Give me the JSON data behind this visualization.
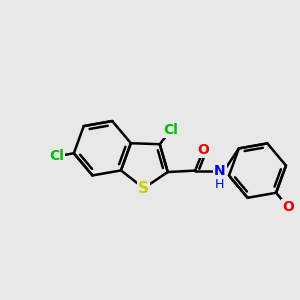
{
  "background_color": "#e8e8e8",
  "bond_color": "#000000",
  "bond_width": 1.8,
  "cl_color": "#00bb00",
  "s_color": "#cccc00",
  "o_color": "#ee0000",
  "n_color": "#0000ee",
  "font_size_atom": 10,
  "fig_width": 3.0,
  "fig_height": 3.0,
  "dpi": 100,
  "xlim": [
    -3.5,
    5.0
  ],
  "ylim": [
    -3.0,
    3.0
  ]
}
